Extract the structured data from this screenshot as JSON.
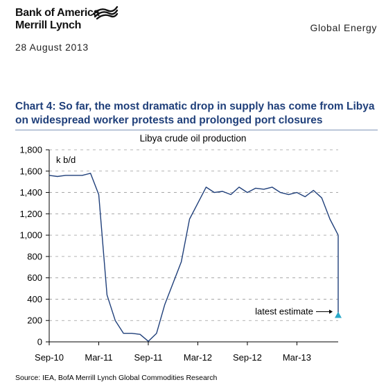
{
  "header": {
    "logo_line1": "Bank of America",
    "logo_line2": "Merrill Lynch",
    "logo_icon": "flag-icon",
    "section": "Global Energy",
    "date": "28 August 2013"
  },
  "chart_title_line1": "Chart 4: So far, the most dramatic drop in supply has come from Libya",
  "chart_title_line2": "on widespread worker protests and prolonged port closures",
  "source": "Source: IEA, BofA Merrill Lynch Global Commodities Research",
  "colors": {
    "line": "#1f3f7a",
    "marker": "#2aa8c8",
    "title": "#1f3f7a"
  },
  "chart_data": {
    "type": "line",
    "title": "Libya crude oil production",
    "ylabel": "k b/d",
    "ylim": [
      0,
      1800
    ],
    "yticks": [
      0,
      200,
      400,
      600,
      800,
      1000,
      1200,
      1400,
      1600,
      1800
    ],
    "ytick_labels": [
      "0",
      "200",
      "400",
      "600",
      "800",
      "1,000",
      "1,200",
      "1,400",
      "1,600",
      "1,800"
    ],
    "x": [
      "Sep-10",
      "Oct-10",
      "Nov-10",
      "Dec-10",
      "Jan-11",
      "Feb-11",
      "Mar-11",
      "Apr-11",
      "May-11",
      "Jun-11",
      "Jul-11",
      "Aug-11",
      "Sep-11",
      "Oct-11",
      "Nov-11",
      "Dec-11",
      "Jan-12",
      "Feb-12",
      "Mar-12",
      "Apr-12",
      "May-12",
      "Jun-12",
      "Jul-12",
      "Aug-12",
      "Sep-12",
      "Oct-12",
      "Nov-12",
      "Dec-12",
      "Jan-13",
      "Feb-13",
      "Mar-13",
      "Apr-13",
      "May-13",
      "Jun-13",
      "Jul-13",
      "Aug-13"
    ],
    "values": [
      1560,
      1550,
      1560,
      1560,
      1560,
      1580,
      1380,
      440,
      200,
      80,
      80,
      70,
      5,
      80,
      350,
      550,
      750,
      1150,
      1300,
      1450,
      1400,
      1410,
      1380,
      1450,
      1400,
      1440,
      1430,
      1450,
      1400,
      1380,
      1400,
      1360,
      1420,
      1350,
      1150,
      1000
    ],
    "estimate": {
      "x": "Aug-13",
      "value": 250,
      "label": "latest estimate"
    },
    "xtick_labels": [
      "Sep-10",
      "Mar-11",
      "Sep-11",
      "Mar-12",
      "Sep-12",
      "Mar-13"
    ],
    "xtick_index": [
      0,
      6,
      12,
      18,
      24,
      30
    ],
    "grid": "dashed-horizontal",
    "legend": "none"
  }
}
